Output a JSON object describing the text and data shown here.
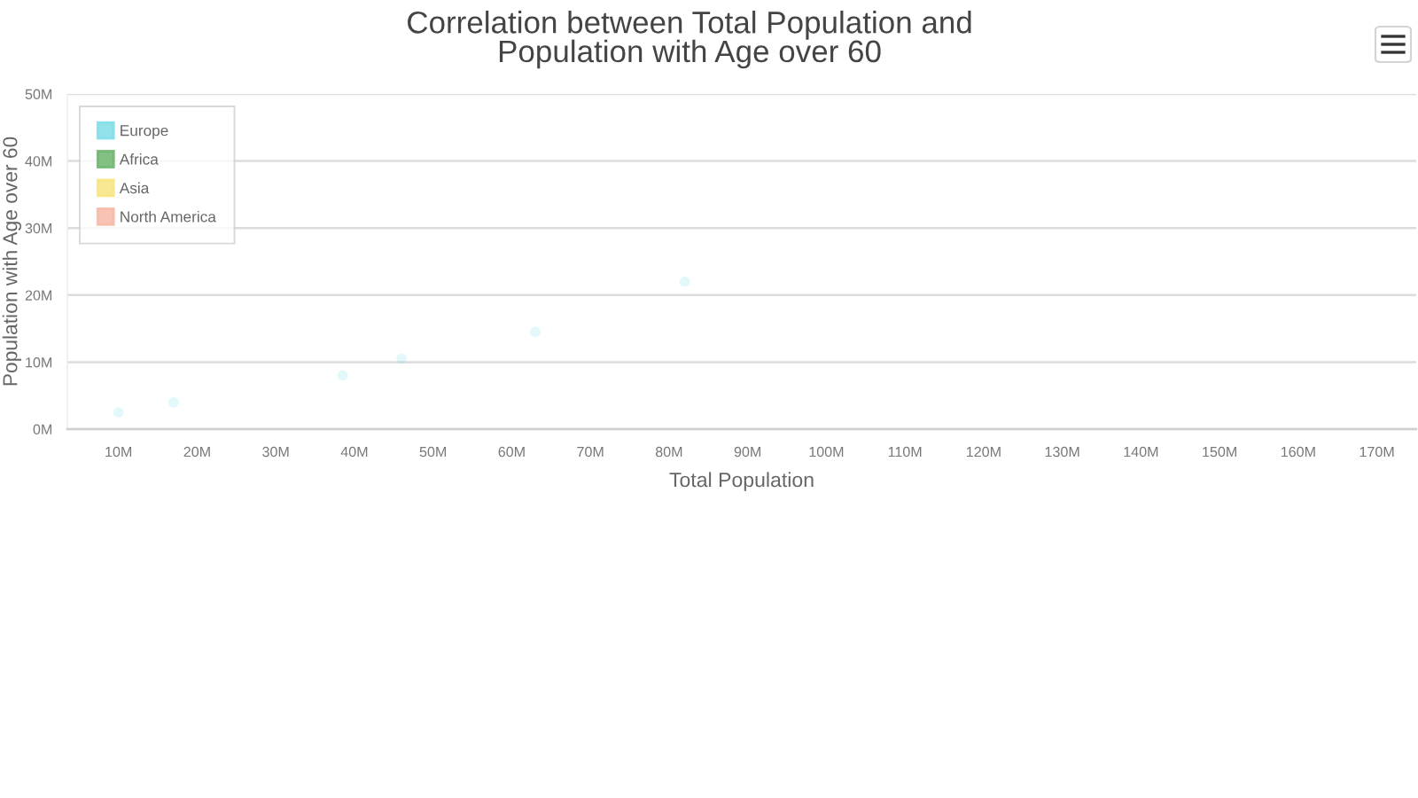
{
  "chart_data": {
    "type": "scatter",
    "title": "Correlation between Total Population and\nPopulation with Age over 60",
    "xlabel": "Total Population",
    "ylabel": "Population with Age over 60",
    "marker": "circle",
    "grid": "y",
    "legend": "top left",
    "xlim": [
      3.5,
      175
    ],
    "xticks": [
      {
        "value": 10,
        "label": "10M"
      },
      {
        "value": 20,
        "label": "20M"
      },
      {
        "value": 30,
        "label": "30M"
      },
      {
        "value": 40,
        "label": "40M"
      },
      {
        "value": 50,
        "label": "50M"
      },
      {
        "value": 60,
        "label": "60M"
      },
      {
        "value": 70,
        "label": "70M"
      },
      {
        "value": 80,
        "label": "80M"
      },
      {
        "value": 90,
        "label": "90M"
      },
      {
        "value": 100,
        "label": "100M"
      },
      {
        "value": 110,
        "label": "110M"
      },
      {
        "value": 120,
        "label": "120M"
      },
      {
        "value": 130,
        "label": "130M"
      },
      {
        "value": 140,
        "label": "140M"
      },
      {
        "value": 150,
        "label": "150M"
      },
      {
        "value": 160,
        "label": "160M"
      },
      {
        "value": 170,
        "label": "170M"
      }
    ],
    "ylim": [
      0,
      50
    ],
    "yticks": [
      {
        "value": 0,
        "label": "0M"
      },
      {
        "value": 10,
        "label": "10M"
      },
      {
        "value": 20,
        "label": "20M"
      },
      {
        "value": 30,
        "label": "30M"
      },
      {
        "value": 40,
        "label": "40M"
      },
      {
        "value": 50,
        "label": "50M"
      }
    ],
    "series": [
      {
        "name": "Europe",
        "color": "#7fdde9",
        "x": [
          10,
          17,
          38.5,
          46,
          63,
          82
        ],
        "values": [
          2.5,
          4,
          8,
          10.5,
          14.5,
          22
        ]
      },
      {
        "name": "Africa",
        "color": "#6db56d"
      },
      {
        "name": "Asia",
        "color": "#f8e47f"
      },
      {
        "name": "North America",
        "color": "#f8b9a6"
      }
    ]
  }
}
